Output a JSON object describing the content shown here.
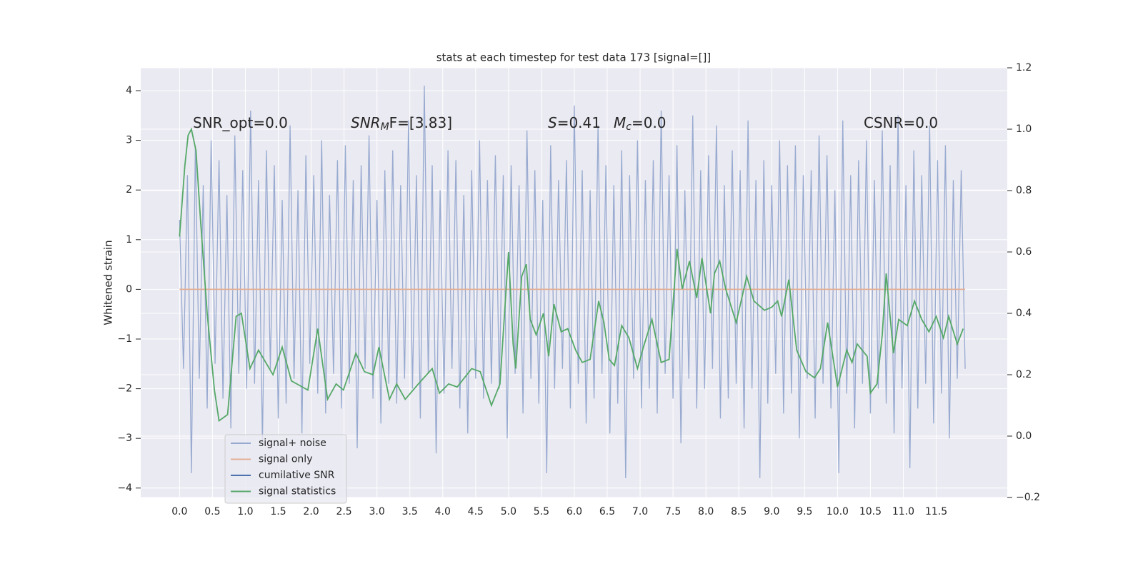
{
  "chart_data": {
    "type": "line",
    "title": "stats at each timestep for test data 173 [signal=[]]",
    "ylabel": "Whitened strain",
    "xlim": [
      -0.59,
      12.58
    ],
    "ylim": [
      -4.19,
      4.46
    ],
    "y2lim": [
      -0.2,
      1.2
    ],
    "xticks": [
      {
        "value": 0,
        "label": "0.0"
      },
      0.5,
      {
        "value": 1,
        "label": "1.0"
      },
      1.5,
      {
        "value": 2,
        "label": "2.0"
      },
      2.5,
      {
        "value": 3,
        "label": "3.0"
      },
      3.5,
      {
        "value": 4,
        "label": "4.0"
      },
      4.5,
      {
        "value": 5,
        "label": "5.0"
      },
      5.5,
      {
        "value": 6,
        "label": "6.0"
      },
      6.5,
      {
        "value": 7,
        "label": "7.0"
      },
      7.5,
      {
        "value": 8,
        "label": "8.0"
      },
      8.5,
      {
        "value": 9,
        "label": "9.0"
      },
      9.5,
      {
        "value": 10,
        "label": "10.0"
      },
      10.5,
      {
        "value": 11,
        "label": "11.0"
      },
      11.5
    ],
    "yticks": [
      {
        "value": -4,
        "label": "−4"
      },
      {
        "value": -3,
        "label": "−3"
      },
      {
        "value": -2,
        "label": "−2"
      },
      {
        "value": -1,
        "label": "−1"
      },
      0,
      1,
      2,
      3,
      4
    ],
    "y2ticks": [
      {
        "value": -0.2,
        "label": "−0.2"
      },
      {
        "value": 0,
        "label": "0.0"
      },
      0.2,
      0.4,
      0.6,
      0.8,
      {
        "value": 1,
        "label": "1.0"
      },
      1.2
    ],
    "grid": true,
    "legend": "lower left",
    "annotations": [
      {
        "text": "SNR_opt=0.0"
      },
      {
        "base": "SNR",
        "sub": "M",
        "rest": "F=[3.83]"
      },
      {
        "base": "S",
        "rest": "=0.41"
      },
      {
        "base": "M",
        "sub": "c",
        "rest": "=0.0"
      },
      {
        "text": "CSNR=0.0"
      }
    ],
    "series": [
      {
        "name": "signal+ noise",
        "color": "#98aad0",
        "x": [
          0,
          0.06,
          0.12,
          0.18,
          0.24,
          0.3,
          0.36,
          0.42,
          0.48,
          0.54,
          0.6,
          0.66,
          0.72,
          0.78,
          0.84,
          0.9,
          0.96,
          1.02,
          1.08,
          1.14,
          1.2,
          1.26,
          1.32,
          1.38,
          1.44,
          1.5,
          1.56,
          1.62,
          1.68,
          1.74,
          1.8,
          1.86,
          1.92,
          1.98,
          2.04,
          2.1,
          2.16,
          2.22,
          2.28,
          2.34,
          2.4,
          2.46,
          2.52,
          2.58,
          2.64,
          2.7,
          2.76,
          2.82,
          2.88,
          2.94,
          3.0,
          3.06,
          3.12,
          3.18,
          3.24,
          3.3,
          3.36,
          3.42,
          3.48,
          3.54,
          3.6,
          3.66,
          3.72,
          3.78,
          3.84,
          3.9,
          3.96,
          4.02,
          4.08,
          4.14,
          4.2,
          4.26,
          4.32,
          4.38,
          4.44,
          4.5,
          4.56,
          4.62,
          4.68,
          4.74,
          4.8,
          4.86,
          4.92,
          4.98,
          5.04,
          5.1,
          5.16,
          5.22,
          5.28,
          5.34,
          5.4,
          5.46,
          5.52,
          5.58,
          5.64,
          5.7,
          5.76,
          5.82,
          5.88,
          5.94,
          6.0,
          6.06,
          6.12,
          6.18,
          6.24,
          6.3,
          6.36,
          6.42,
          6.48,
          6.54,
          6.6,
          6.66,
          6.72,
          6.78,
          6.84,
          6.9,
          6.96,
          7.02,
          7.08,
          7.14,
          7.2,
          7.26,
          7.32,
          7.38,
          7.44,
          7.5,
          7.56,
          7.62,
          7.68,
          7.74,
          7.8,
          7.86,
          7.92,
          7.98,
          8.04,
          8.1,
          8.16,
          8.22,
          8.28,
          8.34,
          8.4,
          8.46,
          8.52,
          8.58,
          8.64,
          8.7,
          8.76,
          8.82,
          8.88,
          8.94,
          9.0,
          9.06,
          9.12,
          9.18,
          9.24,
          9.3,
          9.36,
          9.42,
          9.48,
          9.54,
          9.6,
          9.66,
          9.72,
          9.78,
          9.84,
          9.9,
          9.96,
          10.02,
          10.08,
          10.14,
          10.2,
          10.26,
          10.32,
          10.38,
          10.44,
          10.5,
          10.56,
          10.62,
          10.68,
          10.74,
          10.8,
          10.86,
          10.92,
          10.98,
          11.04,
          11.1,
          11.16,
          11.22,
          11.28,
          11.34,
          11.4,
          11.46,
          11.52,
          11.58,
          11.64,
          11.7,
          11.76,
          11.82,
          11.88,
          11.94
        ],
        "values": [
          1.4,
          -1.6,
          2.3,
          -3.7,
          2.9,
          -1.8,
          2.1,
          -2.4,
          3.0,
          -1.5,
          2.6,
          -2.2,
          1.9,
          -2.8,
          3.1,
          -1.7,
          2.4,
          -2.0,
          3.6,
          -1.9,
          2.2,
          -3.1,
          2.8,
          -1.6,
          2.5,
          -2.6,
          1.8,
          -2.3,
          3.3,
          -1.8,
          2.0,
          -2.9,
          2.7,
          -1.5,
          2.3,
          -2.1,
          3.0,
          -2.5,
          1.9,
          -1.7,
          2.6,
          -2.4,
          2.9,
          -1.9,
          2.2,
          -3.2,
          2.5,
          -1.6,
          3.1,
          -2.2,
          1.8,
          -2.7,
          2.4,
          -1.9,
          2.8,
          -2.3,
          2.1,
          -1.8,
          3.4,
          -2.0,
          2.3,
          -2.6,
          4.1,
          -1.7,
          2.5,
          -3.3,
          2.0,
          -2.1,
          2.8,
          -1.6,
          2.6,
          -2.4,
          1.9,
          -2.9,
          2.4,
          -1.8,
          3.0,
          -2.2,
          2.2,
          -1.9,
          2.7,
          -2.0,
          2.3,
          -3.0,
          2.5,
          -1.7,
          2.1,
          -2.5,
          3.2,
          -1.8,
          2.4,
          -2.3,
          1.8,
          -3.7,
          2.9,
          -2.0,
          2.2,
          -1.6,
          2.6,
          -2.4,
          3.7,
          -1.9,
          2.4,
          -2.7,
          2.0,
          -2.2,
          3.3,
          -1.7,
          2.5,
          -2.9,
          2.1,
          -2.3,
          2.8,
          -3.8,
          2.3,
          -1.8,
          3.0,
          -2.4,
          2.2,
          -2.0,
          2.6,
          -2.5,
          3.6,
          -1.7,
          2.3,
          -2.2,
          2.9,
          -3.1,
          2.0,
          -1.8,
          3.5,
          -2.4,
          2.4,
          -2.0,
          2.7,
          -1.6,
          3.3,
          -2.6,
          2.1,
          -2.2,
          2.8,
          -1.9,
          2.4,
          -2.8,
          3.4,
          -2.0,
          2.2,
          -3.8,
          2.6,
          -2.3,
          2.1,
          -1.7,
          3.0,
          -2.5,
          2.5,
          -2.1,
          2.9,
          -3.0,
          2.3,
          -1.8,
          2.4,
          -2.6,
          3.1,
          -1.9,
          2.7,
          -2.4,
          2.0,
          -3.7,
          3.4,
          -2.1,
          2.3,
          -2.8,
          2.6,
          -1.9,
          3.0,
          -2.5,
          2.2,
          -2.0,
          3.2,
          -2.3,
          2.5,
          -2.9,
          3.5,
          -2.0,
          2.1,
          -3.6,
          2.8,
          -2.4,
          2.3,
          -1.9,
          3.3,
          -2.7,
          2.6,
          -2.1,
          2.9,
          -3.0,
          2.2,
          -1.8,
          2.4,
          -1.6
        ]
      },
      {
        "name": "signal only",
        "color": "#e4ad93",
        "x": [
          0,
          11.94
        ],
        "values": [
          0,
          0
        ]
      },
      {
        "name": "cumilative SNR",
        "color": "#4c72b0",
        "x": [],
        "values": []
      },
      {
        "name": "signal statistics",
        "color": "#55a868",
        "axis": "y2",
        "x": [
          0,
          0.08,
          0.13,
          0.18,
          0.25,
          0.32,
          0.42,
          0.53,
          0.6,
          0.73,
          0.86,
          0.94,
          1.07,
          1.2,
          1.42,
          1.56,
          1.7,
          1.95,
          2.1,
          2.25,
          2.38,
          2.49,
          2.68,
          2.81,
          2.94,
          3.03,
          3.19,
          3.3,
          3.43,
          3.63,
          3.84,
          3.95,
          4.09,
          4.22,
          4.44,
          4.57,
          4.74,
          4.87,
          5.0,
          5.07,
          5.11,
          5.2,
          5.27,
          5.33,
          5.42,
          5.53,
          5.61,
          5.69,
          5.8,
          5.9,
          6.02,
          6.12,
          6.24,
          6.37,
          6.45,
          6.53,
          6.61,
          6.72,
          6.83,
          6.96,
          7.05,
          7.18,
          7.32,
          7.44,
          7.56,
          7.64,
          7.75,
          7.86,
          7.94,
          8.07,
          8.13,
          8.21,
          8.3,
          8.46,
          8.62,
          8.73,
          8.89,
          9.0,
          9.09,
          9.15,
          9.26,
          9.38,
          9.52,
          9.65,
          9.74,
          9.85,
          10.0,
          10.14,
          10.22,
          10.3,
          10.45,
          10.5,
          10.6,
          10.68,
          10.74,
          10.85,
          10.93,
          11.06,
          11.17,
          11.28,
          11.39,
          11.5,
          11.61,
          11.69,
          11.82,
          11.91
        ],
        "values": [
          0.65,
          0.88,
          0.98,
          1.0,
          0.93,
          0.7,
          0.4,
          0.15,
          0.05,
          0.07,
          0.39,
          0.4,
          0.22,
          0.28,
          0.2,
          0.29,
          0.18,
          0.15,
          0.35,
          0.12,
          0.17,
          0.15,
          0.27,
          0.21,
          0.2,
          0.29,
          0.12,
          0.17,
          0.12,
          0.17,
          0.22,
          0.14,
          0.17,
          0.16,
          0.22,
          0.21,
          0.1,
          0.17,
          0.6,
          0.3,
          0.22,
          0.52,
          0.56,
          0.38,
          0.33,
          0.4,
          0.26,
          0.43,
          0.34,
          0.35,
          0.28,
          0.24,
          0.25,
          0.44,
          0.37,
          0.25,
          0.23,
          0.36,
          0.32,
          0.22,
          0.29,
          0.38,
          0.24,
          0.25,
          0.61,
          0.48,
          0.57,
          0.45,
          0.58,
          0.4,
          0.53,
          0.57,
          0.48,
          0.37,
          0.52,
          0.44,
          0.41,
          0.42,
          0.44,
          0.39,
          0.51,
          0.28,
          0.21,
          0.19,
          0.22,
          0.37,
          0.16,
          0.28,
          0.24,
          0.3,
          0.26,
          0.14,
          0.17,
          0.33,
          0.53,
          0.27,
          0.38,
          0.36,
          0.44,
          0.38,
          0.34,
          0.39,
          0.32,
          0.39,
          0.3,
          0.35
        ]
      }
    ]
  }
}
